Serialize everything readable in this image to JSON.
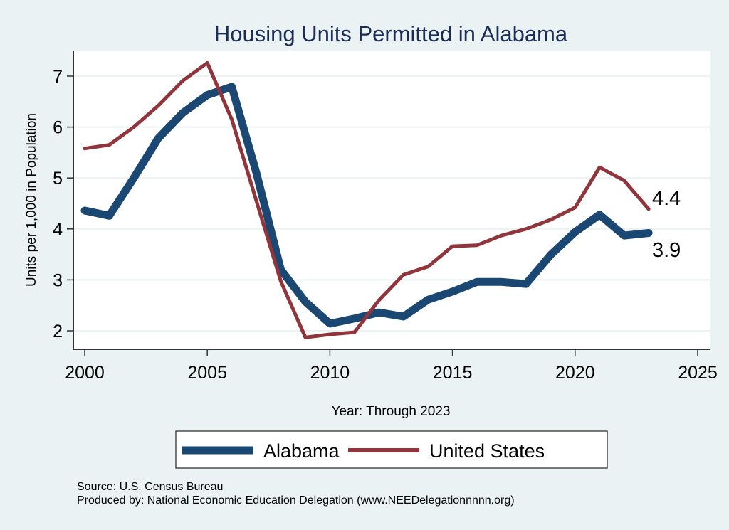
{
  "chart_data": {
    "type": "line",
    "title": "Housing Units Permitted in Alabama",
    "xlabel": "Year: Through 2023",
    "ylabel": "Units per 1,000 in Population",
    "xlim": [
      2000,
      2025
    ],
    "ylim": [
      1.65,
      7.5
    ],
    "x_ticks": [
      2000,
      2005,
      2010,
      2015,
      2020,
      2025
    ],
    "x_tick_labels": [
      "2000",
      "2005",
      "2010",
      "2015",
      "2020",
      "2025"
    ],
    "y_ticks": [
      2,
      3,
      4,
      5,
      6,
      7
    ],
    "y_tick_labels": [
      "2",
      "3",
      "4",
      "5",
      "6",
      "7"
    ],
    "grid": true,
    "legend_position": "bottom",
    "x": [
      2000,
      2001,
      2002,
      2003,
      2004,
      2005,
      2006,
      2007,
      2008,
      2009,
      2010,
      2011,
      2012,
      2013,
      2014,
      2015,
      2016,
      2017,
      2018,
      2019,
      2020,
      2021,
      2022,
      2023
    ],
    "series": [
      {
        "name": "Alabama",
        "color": "#1a4872",
        "values": [
          4.36,
          4.26,
          5.0,
          5.78,
          6.28,
          6.63,
          6.79,
          5.1,
          3.2,
          2.57,
          2.14,
          2.24,
          2.36,
          2.28,
          2.61,
          2.77,
          2.96,
          2.96,
          2.92,
          3.49,
          3.94,
          4.28,
          3.87,
          3.92
        ],
        "end_label": "3.9"
      },
      {
        "name": "United States",
        "color": "#90353b",
        "values": [
          5.58,
          5.65,
          6.0,
          6.42,
          6.91,
          7.26,
          6.15,
          4.55,
          2.97,
          1.87,
          1.93,
          1.97,
          2.6,
          3.1,
          3.26,
          3.66,
          3.68,
          3.87,
          4.0,
          4.18,
          4.42,
          5.21,
          4.95,
          4.39
        ],
        "end_label": "4.4"
      }
    ]
  },
  "footer": {
    "source": "Source: U.S. Census Bureau",
    "produced_by": "Produced by: National Economic Education Delegation (www.NEEDelegationnnnn.org)"
  }
}
